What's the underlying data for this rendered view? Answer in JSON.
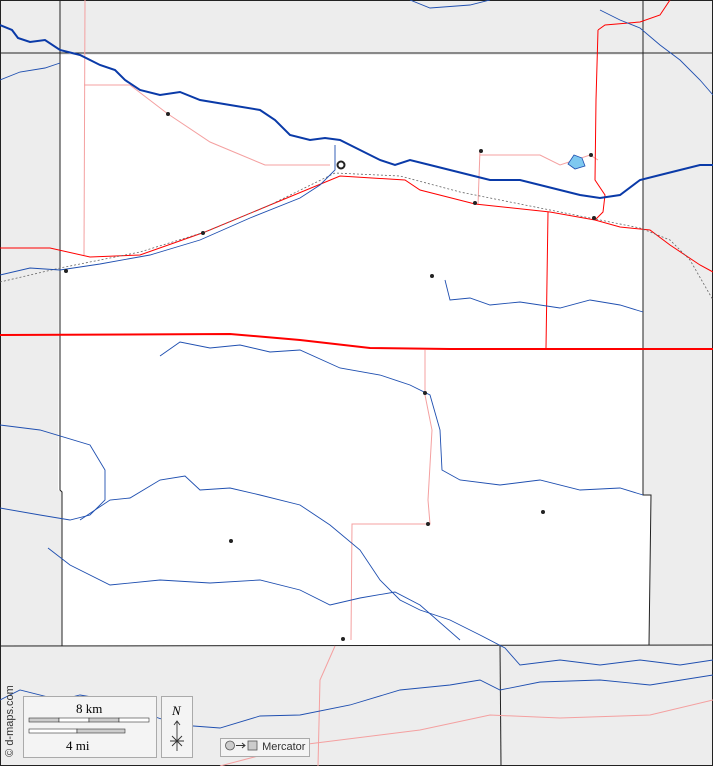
{
  "credit": "© d-maps.com",
  "scale": {
    "km_label": "8 km",
    "mi_label": "4 mi"
  },
  "north_label": "N",
  "projection": {
    "label": "Mercator",
    "icon": "circle-to-square-icon"
  },
  "colors": {
    "background": "#ededed",
    "county": "#ffffff",
    "river": "#1f4fb0",
    "main_river": "#0a3aa8",
    "highway": "#ff0000",
    "minor_road": "#f4a0a0",
    "border": "#222222",
    "lake": "#7ec8f0"
  }
}
